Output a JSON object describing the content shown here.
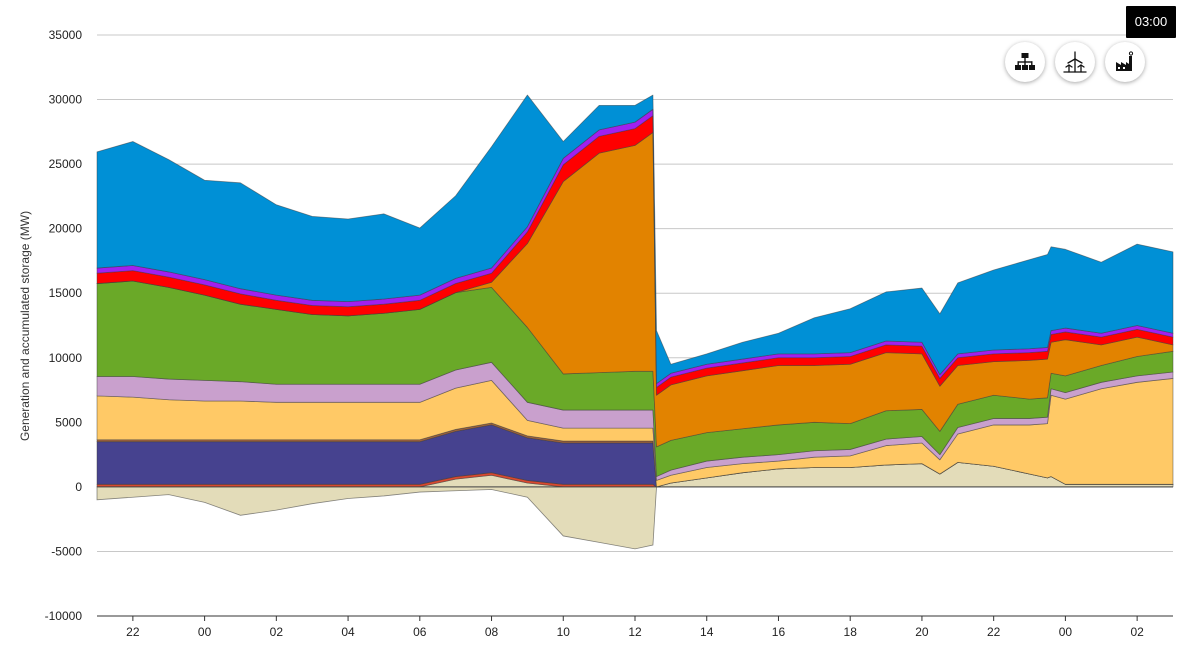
{
  "time_badge": "03:00",
  "toolbar": {
    "buttons": [
      {
        "name": "hierarchy-icon",
        "label": "network hierarchy"
      },
      {
        "name": "wind-turbine-icon",
        "label": "renewables"
      },
      {
        "name": "factory-icon",
        "label": "conventional"
      }
    ]
  },
  "chart_data": {
    "type": "area",
    "stacked": true,
    "title": "",
    "xlabel": "",
    "ylabel": "Generation  and accumulated storage (MW)",
    "ylim": [
      -10000,
      35000
    ],
    "yticks": [
      35000,
      30000,
      25000,
      20000,
      15000,
      10000,
      5000,
      0,
      -5000,
      -10000
    ],
    "xlim": [
      21,
      51
    ],
    "xticks": [
      {
        "value": 22,
        "label": "22"
      },
      {
        "value": 24,
        "label": "00"
      },
      {
        "value": 26,
        "label": "02"
      },
      {
        "value": 28,
        "label": "04"
      },
      {
        "value": 30,
        "label": "06"
      },
      {
        "value": 32,
        "label": "08"
      },
      {
        "value": 34,
        "label": "10"
      },
      {
        "value": 36,
        "label": "12"
      },
      {
        "value": 38,
        "label": "14"
      },
      {
        "value": 40,
        "label": "16"
      },
      {
        "value": 42,
        "label": "18"
      },
      {
        "value": 44,
        "label": "20"
      },
      {
        "value": 46,
        "label": "22"
      },
      {
        "value": 48,
        "label": "00"
      },
      {
        "value": 50,
        "label": "02"
      }
    ],
    "grid": true,
    "x": [
      21,
      22,
      23,
      24,
      25,
      26,
      27,
      28,
      29,
      30,
      31,
      32,
      33,
      34,
      35,
      36,
      36.5,
      36.6,
      37,
      38,
      39,
      40,
      41,
      42,
      43,
      44,
      44.5,
      45,
      46,
      47,
      47.5,
      47.6,
      48,
      49,
      50,
      51
    ],
    "negative_series": {
      "name": "storage-charge",
      "color": "#e3dcb9",
      "values": [
        -1000,
        -800,
        -600,
        -1200,
        -2200,
        -1800,
        -1300,
        -900,
        -700,
        -400,
        -300,
        -200,
        -800,
        -3800,
        -4300,
        -4800,
        -4500,
        0,
        0,
        0,
        0,
        0,
        0,
        0,
        0,
        0,
        0,
        0,
        0,
        0,
        0,
        0,
        0,
        0,
        0,
        0
      ]
    },
    "series": [
      {
        "name": "base-storage",
        "color": "#e3dcb9",
        "values": [
          0,
          0,
          0,
          0,
          0,
          0,
          0,
          0,
          0,
          0,
          600,
          900,
          300,
          0,
          0,
          0,
          0,
          0,
          300,
          700,
          1100,
          1400,
          1500,
          1500,
          1700,
          1800,
          1000,
          1900,
          1600,
          1000,
          700,
          800,
          200,
          200,
          200,
          200
        ]
      },
      {
        "name": "thin-red",
        "color": "#d9492f",
        "values": [
          200,
          200,
          200,
          200,
          200,
          200,
          200,
          200,
          200,
          200,
          200,
          200,
          200,
          200,
          200,
          200,
          200,
          0,
          0,
          0,
          0,
          0,
          0,
          0,
          0,
          0,
          0,
          0,
          0,
          0,
          0,
          0,
          0,
          0,
          0,
          0
        ]
      },
      {
        "name": "indigo",
        "color": "#46428f",
        "values": [
          3300,
          3300,
          3300,
          3300,
          3300,
          3300,
          3300,
          3300,
          3300,
          3300,
          3500,
          3700,
          3300,
          3200,
          3200,
          3200,
          3200,
          0,
          0,
          0,
          0,
          0,
          0,
          0,
          0,
          0,
          0,
          0,
          0,
          0,
          0,
          0,
          0,
          0,
          0,
          0
        ]
      },
      {
        "name": "brown",
        "color": "#a0623a",
        "values": [
          150,
          150,
          150,
          150,
          150,
          150,
          150,
          150,
          150,
          150,
          150,
          150,
          150,
          150,
          150,
          150,
          150,
          0,
          0,
          0,
          0,
          0,
          0,
          0,
          0,
          0,
          0,
          0,
          0,
          0,
          0,
          0,
          0,
          0,
          0,
          0
        ]
      },
      {
        "name": "light-orange",
        "color": "#ffc966",
        "values": [
          3400,
          3300,
          3100,
          3000,
          3000,
          2900,
          2900,
          2900,
          2900,
          2900,
          3200,
          3300,
          1200,
          1000,
          1000,
          1000,
          1000,
          500,
          600,
          800,
          700,
          600,
          800,
          900,
          1500,
          1600,
          1100,
          2200,
          3200,
          3800,
          4200,
          6300,
          6600,
          7400,
          7900,
          8200
        ]
      },
      {
        "name": "lilac",
        "color": "#c9a0cd",
        "values": [
          1500,
          1600,
          1600,
          1600,
          1500,
          1400,
          1400,
          1400,
          1400,
          1400,
          1400,
          1400,
          1400,
          1400,
          1400,
          1400,
          1400,
          300,
          400,
          500,
          500,
          500,
          500,
          500,
          500,
          500,
          400,
          500,
          500,
          500,
          500,
          500,
          500,
          500,
          500,
          500
        ]
      },
      {
        "name": "green",
        "color": "#6aa928",
        "values": [
          7200,
          7400,
          7100,
          6600,
          6000,
          5800,
          5400,
          5300,
          5500,
          5800,
          6000,
          5800,
          5800,
          2800,
          2900,
          3000,
          3000,
          2300,
          2300,
          2200,
          2200,
          2300,
          2200,
          2000,
          2200,
          2100,
          1800,
          1800,
          1800,
          1500,
          1500,
          1200,
          1300,
          1300,
          1500,
          1600
        ]
      },
      {
        "name": "dark-orange",
        "color": "#e28300",
        "values": [
          0,
          0,
          0,
          0,
          0,
          0,
          0,
          0,
          0,
          0,
          0,
          400,
          6500,
          14900,
          17000,
          17500,
          18500,
          4000,
          4300,
          4400,
          4500,
          4600,
          4400,
          4600,
          4500,
          4300,
          3500,
          3000,
          2600,
          3000,
          3000,
          2400,
          2800,
          1600,
          1500,
          500
        ]
      },
      {
        "name": "red",
        "color": "#ff0000",
        "values": [
          800,
          800,
          800,
          800,
          800,
          700,
          700,
          700,
          700,
          700,
          700,
          700,
          900,
          1300,
          1300,
          1300,
          1300,
          600,
          600,
          600,
          600,
          600,
          600,
          600,
          600,
          600,
          600,
          600,
          600,
          600,
          600,
          600,
          600,
          600,
          600,
          600
        ]
      },
      {
        "name": "violet",
        "color": "#a020f0",
        "values": [
          400,
          400,
          400,
          400,
          400,
          400,
          400,
          400,
          400,
          400,
          400,
          400,
          400,
          500,
          500,
          500,
          500,
          300,
          300,
          300,
          300,
          300,
          300,
          300,
          300,
          300,
          300,
          300,
          300,
          300,
          300,
          300,
          300,
          300,
          300,
          300
        ]
      },
      {
        "name": "blue",
        "color": "#0090d6",
        "values": [
          9000,
          9600,
          8700,
          7700,
          8200,
          7000,
          6500,
          6400,
          6600,
          5200,
          6400,
          9400,
          10200,
          1300,
          1900,
          1300,
          1100,
          4100,
          700,
          800,
          1300,
          1600,
          2800,
          3400,
          3800,
          4200,
          4700,
          5500,
          6200,
          6900,
          7200,
          6500,
          6100,
          5500,
          6300,
          6300
        ]
      }
    ]
  }
}
